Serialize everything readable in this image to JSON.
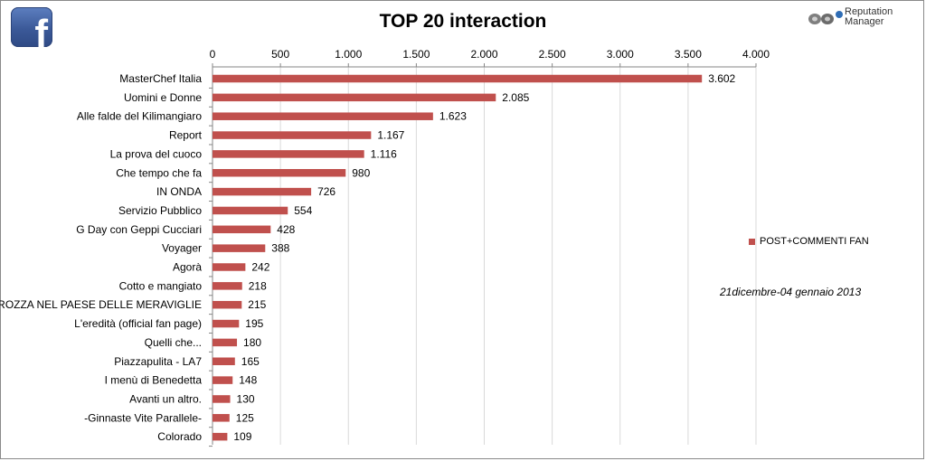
{
  "header": {
    "title": "TOP 20 interaction",
    "brand_line1": "Reputation",
    "brand_line2": "Manager",
    "fb_letter": "f"
  },
  "note": "21dicembre-04 gennaio 2013",
  "colors": {
    "bar": "#c0504d",
    "grid": "#d9d9d9",
    "axis": "#868686",
    "facebook": "#3b5998"
  },
  "icons": [
    "facebook-icon",
    "reputation-manager-logo"
  ],
  "chart_data": {
    "type": "bar",
    "orientation": "horizontal",
    "title": "TOP 20 interaction",
    "xlabel": "",
    "ylabel": "",
    "xlim": [
      0,
      4000
    ],
    "xticks": [
      "0",
      "500",
      "1.000",
      "1.500",
      "2.000",
      "2.500",
      "3.000",
      "3.500",
      "4.000"
    ],
    "xtick_values": [
      0,
      500,
      1000,
      1500,
      2000,
      2500,
      3000,
      3500,
      4000
    ],
    "grid": true,
    "legend_position": "right",
    "categories": [
      "MasterChef Italia",
      "Uomini e Donne",
      "Alle falde del Kilimangiaro",
      "Report",
      "La prova del cuoco",
      "Che tempo che fa",
      "IN ONDA",
      "Servizio Pubblico",
      "G Day con Geppi Cucciari",
      "Voyager",
      "Agorà",
      "Cotto e mangiato",
      "CROZZA NEL PAESE DELLE MERAVIGLIE",
      "L'eredità (official fan page)",
      "Quelli che...",
      "Piazzapulita - LA7",
      "I menù di Benedetta",
      "Avanti un altro.",
      "-Ginnaste Vite Parallele-",
      "Colorado"
    ],
    "series": [
      {
        "name": "POST+COMMENTI FAN",
        "color": "#c0504d",
        "values": [
          3602,
          2085,
          1623,
          1167,
          1116,
          980,
          726,
          554,
          428,
          388,
          242,
          218,
          215,
          195,
          180,
          165,
          148,
          130,
          125,
          109
        ],
        "labels": [
          "3.602",
          "2.085",
          "1.623",
          "1.167",
          "1.116",
          "980",
          "726",
          "554",
          "428",
          "388",
          "242",
          "218",
          "215",
          "195",
          "180",
          "165",
          "148",
          "130",
          "125",
          "109"
        ]
      }
    ]
  }
}
